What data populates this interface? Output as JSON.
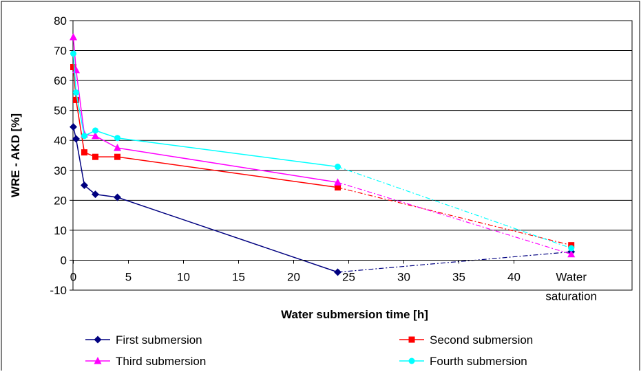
{
  "chart_data": {
    "type": "line",
    "xlabel": "Water submersion time [h]",
    "ylabel": "WRE - AKD [%]",
    "ylim": [
      -10,
      80
    ],
    "yticks": [
      -10,
      0,
      10,
      20,
      30,
      40,
      50,
      60,
      70,
      80
    ],
    "xlim": [
      0,
      48
    ],
    "xticks": [
      0,
      5,
      10,
      15,
      20,
      25,
      30,
      35,
      40
    ],
    "x_extra_category": {
      "label_line1": "Water",
      "label_line2": "saturation",
      "position": 45.2
    },
    "grid": "horizontal major gridlines",
    "legend_position": "bottom",
    "series": [
      {
        "name": "First submersion",
        "color": "#000080",
        "marker": "diamond",
        "x": [
          0,
          0.25,
          1,
          2,
          4,
          24
        ],
        "y": [
          44.5,
          40.5,
          25,
          22,
          21,
          -4
        ],
        "saturation_y": 2.8
      },
      {
        "name": "Second submersion",
        "color": "#ff0000",
        "marker": "square",
        "x": [
          0,
          0.25,
          1,
          2,
          4,
          24
        ],
        "y": [
          64.5,
          53.5,
          36,
          34.5,
          34.5,
          24.3
        ],
        "saturation_y": 5
      },
      {
        "name": "Third submersion",
        "color": "#ff00ff",
        "marker": "triangle",
        "x": [
          0,
          0.25,
          1,
          2,
          4,
          24
        ],
        "y": [
          74.5,
          63.5,
          42,
          41.5,
          37.5,
          26
        ],
        "saturation_y": 2
      },
      {
        "name": "Fourth submersion",
        "color": "#00ffff",
        "marker": "circle",
        "x": [
          0,
          0.25,
          1,
          2,
          4,
          24
        ],
        "y": [
          69,
          56,
          41.5,
          43.3,
          40.8,
          31.2
        ],
        "saturation_y": 4
      }
    ]
  }
}
